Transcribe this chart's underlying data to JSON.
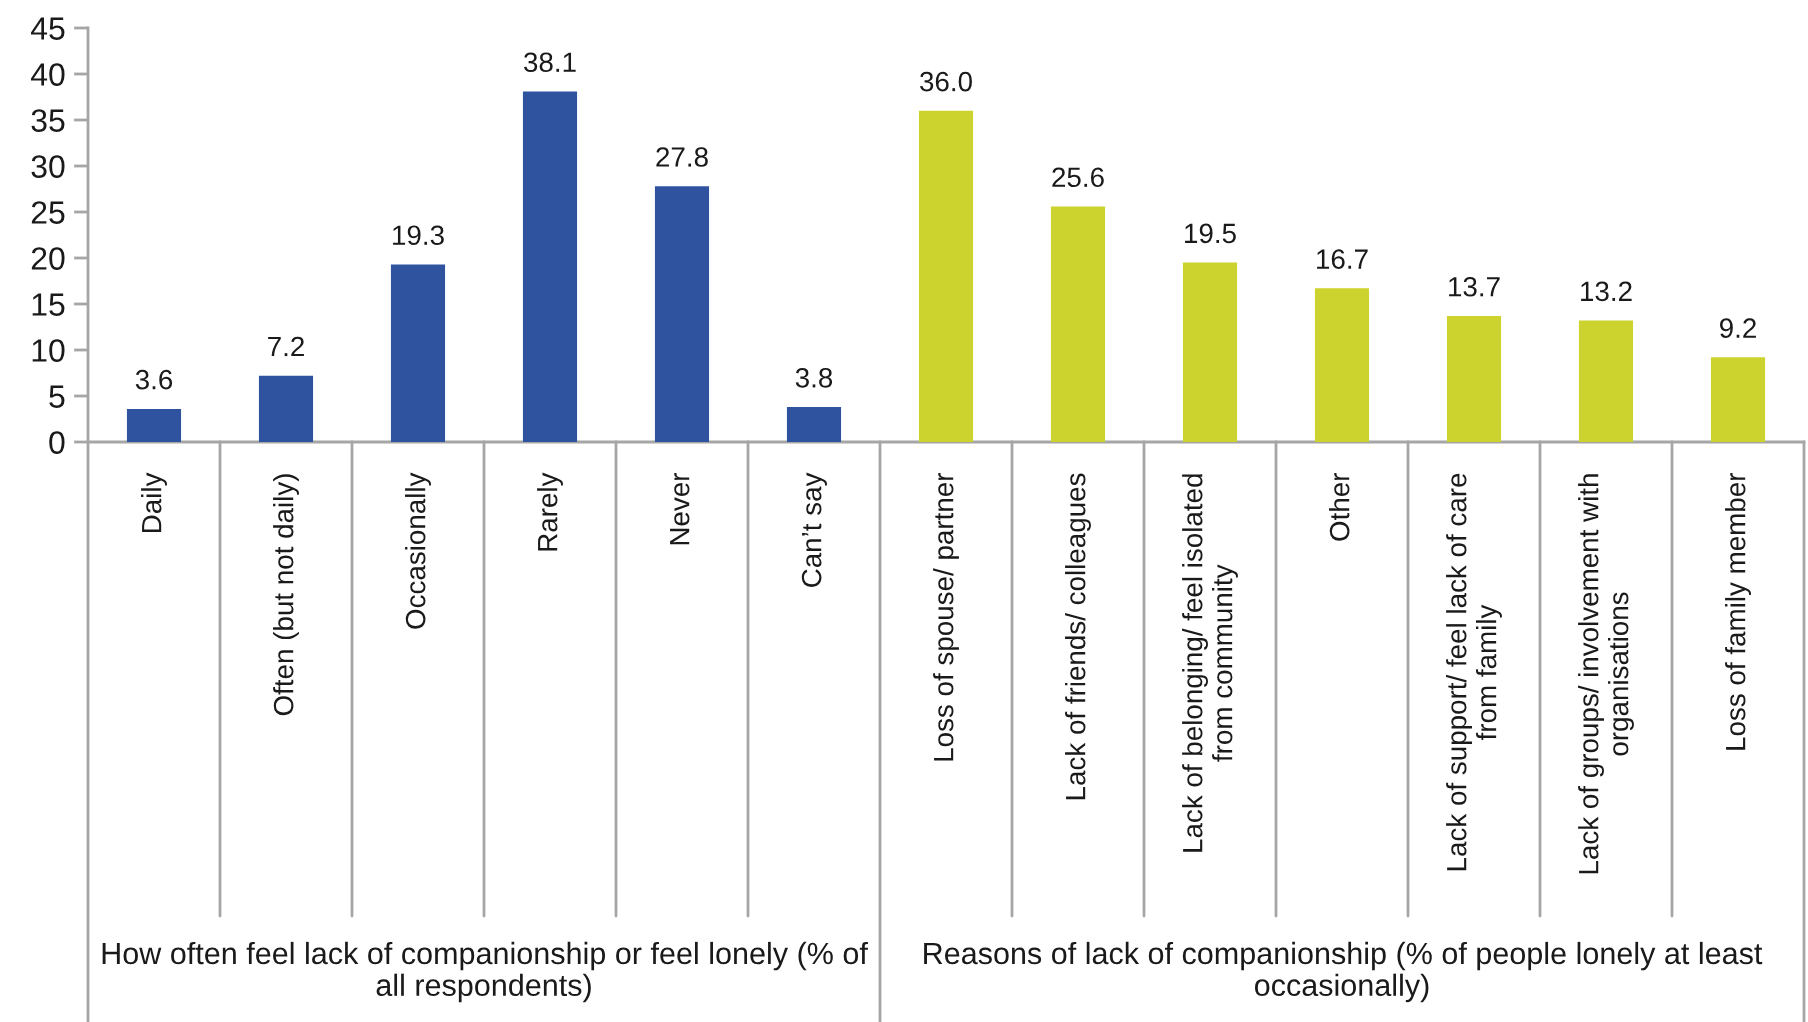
{
  "chart_data": {
    "type": "bar",
    "categories": [
      "Daily",
      "Often (but not daily)",
      "Occasionally",
      "Rarely",
      "Never",
      "Can’t say",
      "Loss of spouse/ partner",
      "Lack of friends/ colleagues",
      "Lack of belonging/ feel isolated\nfrom community",
      "Other",
      "Lack of support/ feel lack of care\nfrom family",
      "Lack of groups/ involvement with\norganisations",
      "Loss of family member"
    ],
    "series": [
      {
        "color": "#2f539f",
        "values": [
          3.6,
          7.2,
          19.3,
          38.1,
          27.8,
          3.8,
          null,
          null,
          null,
          null,
          null,
          null,
          null
        ],
        "value_labels": [
          "3.6",
          "7.2",
          "19.3",
          "38.1",
          "27.8",
          "3.8",
          null,
          null,
          null,
          null,
          null,
          null,
          null
        ]
      },
      {
        "color": "#ccd22e",
        "values": [
          null,
          null,
          null,
          null,
          null,
          null,
          36.0,
          25.6,
          19.5,
          16.7,
          13.7,
          13.2,
          9.2
        ],
        "value_labels": [
          null,
          null,
          null,
          null,
          null,
          null,
          "36.0",
          "25.6",
          "19.5",
          "16.7",
          "13.7",
          "13.2",
          "9.2"
        ]
      }
    ],
    "annotations": [
      "How often feel lack of companionship or feel lonely (% of\nall respondents)",
      "Reasons of lack of companionship (% of people lonely at least\noccasionally)"
    ],
    "ylim": [
      0,
      45
    ],
    "yticks": [
      0,
      5,
      10,
      15,
      20,
      25,
      30,
      35,
      40,
      45
    ]
  }
}
